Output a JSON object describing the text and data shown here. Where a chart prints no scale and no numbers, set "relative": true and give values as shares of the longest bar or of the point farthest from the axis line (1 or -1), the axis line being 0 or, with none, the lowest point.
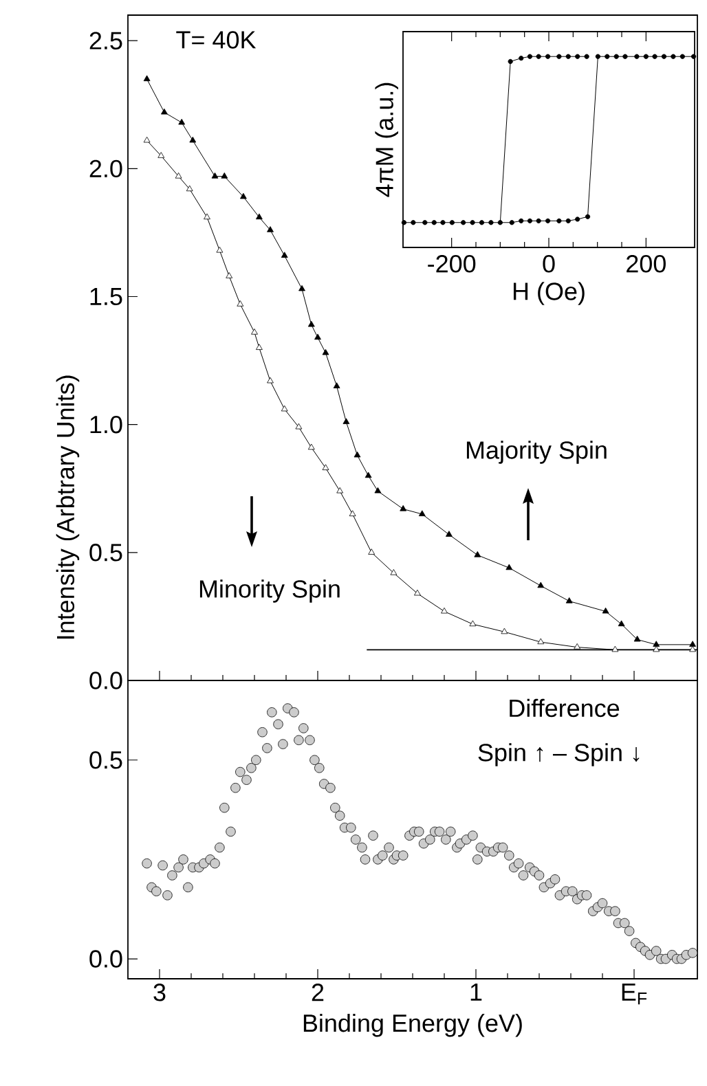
{
  "chart_data": [
    {
      "type": "line",
      "ylabel": "Intensity (Arbtrary Units)",
      "xlim": [
        3.2,
        -0.4
      ],
      "ylim": [
        0,
        2.6
      ],
      "xticks": [
        3,
        2,
        1,
        0
      ],
      "yticks": [
        {
          "value": 0,
          "label": "0.0"
        },
        {
          "value": 0.5,
          "label": "0.5"
        },
        {
          "value": 1,
          "label": "1.0"
        },
        {
          "value": 1.5,
          "label": "1.5"
        },
        {
          "value": 2,
          "label": "2.0"
        },
        {
          "value": 2.5,
          "label": "2.5"
        }
      ],
      "tick_labels": "y",
      "annotations": [
        "T= 40K",
        "Majority Spin",
        "Minority Spin"
      ],
      "series": [
        {
          "color": "#000000",
          "marker": "triangle",
          "x": [
            3.08,
            2.97,
            2.86,
            2.79,
            2.65,
            2.59,
            2.47,
            2.37,
            2.3,
            2.21,
            2.1,
            2.04,
            2.0,
            1.95,
            1.88,
            1.82,
            1.75,
            1.68,
            1.62,
            1.46,
            1.34,
            1.17,
            0.99,
            0.79,
            0.59,
            0.41,
            0.18,
            0.08,
            -0.02,
            -0.14,
            -0.37
          ],
          "values": [
            2.35,
            2.22,
            2.18,
            2.11,
            1.97,
            1.97,
            1.89,
            1.81,
            1.76,
            1.66,
            1.53,
            1.39,
            1.34,
            1.28,
            1.15,
            1.01,
            0.88,
            0.8,
            0.74,
            0.67,
            0.65,
            0.57,
            0.49,
            0.44,
            0.37,
            0.31,
            0.27,
            0.22,
            0.16,
            0.14,
            0.14
          ]
        },
        {
          "color": "#ffffff",
          "marker": "triangle",
          "x": [
            3.08,
            2.99,
            2.88,
            2.81,
            2.7,
            2.62,
            2.56,
            2.49,
            2.4,
            2.37,
            2.3,
            2.21,
            2.12,
            2.04,
            1.95,
            1.86,
            1.78,
            1.66,
            1.52,
            1.37,
            1.2,
            1.02,
            0.82,
            0.59,
            0.36,
            0.12,
            -0.14,
            -0.37
          ],
          "values": [
            2.11,
            2.05,
            1.97,
            1.92,
            1.81,
            1.68,
            1.58,
            1.47,
            1.36,
            1.3,
            1.17,
            1.06,
            0.99,
            0.91,
            0.83,
            0.74,
            0.65,
            0.5,
            0.42,
            0.34,
            0.27,
            0.22,
            0.19,
            0.15,
            0.13,
            0.12,
            0.12,
            0.12
          ]
        },
        {
          "color": "#000000",
          "marker": "none",
          "x": [
            1.69,
            -0.4
          ],
          "values": [
            0.12,
            0.12
          ]
        }
      ]
    },
    {
      "type": "line",
      "relative": true,
      "xlabel": "H (Oe)",
      "ylabel": "4πM (a.u.)",
      "xlim": [
        -300,
        300
      ],
      "xticks": [
        -200,
        0,
        200
      ],
      "marker": "circle",
      "series": [
        {
          "color": "#000000",
          "x": [
            -298,
            -279,
            -255,
            -236,
            -218,
            -199,
            -176,
            -157,
            -138,
            -119,
            -76,
            -57,
            -39,
            -21,
            -2,
            21,
            40,
            59,
            80,
            101,
            120,
            139,
            157,
            181,
            200,
            218,
            237,
            256,
            275,
            298
          ],
          "values": [
            0.0,
            0.0,
            0.0,
            0.0,
            0.0,
            0.0,
            0.0,
            0.0,
            0.0,
            0.0,
            0.0,
            0.01,
            0.01,
            0.01,
            0.01,
            0.01,
            0.01,
            0.02,
            0.035,
            1.0,
            1.0,
            1.0,
            1.0,
            1.0,
            1.0,
            1.0,
            1.0,
            1.0,
            1.0,
            1.0
          ]
        },
        {
          "color": "#000000",
          "x": [
            -100,
            -79,
            -57,
            -39,
            -21,
            -2,
            21,
            40,
            59,
            78
          ],
          "values": [
            0.0,
            0.97,
            0.99,
            1.0,
            1.0,
            1.0,
            1.0,
            1.0,
            1.0,
            1.0
          ]
        }
      ]
    },
    {
      "type": "scatter",
      "xlabel": "Binding Energy (eV)",
      "xlim": [
        3.2,
        -0.4
      ],
      "ylim": [
        -0.05,
        0.7
      ],
      "xticks": [
        3,
        2,
        1,
        {
          "value": 0,
          "label": "E$_{F}$"
        }
      ],
      "yticks": [
        {
          "value": 0,
          "label": "0.0"
        },
        {
          "value": 0.5,
          "label": "0.5"
        }
      ],
      "marker": "circle",
      "annotations": [
        "Difference",
        "Spin ↑ – Spin ↓"
      ],
      "series": [
        {
          "color": "#cccccc",
          "x": [
            3.08,
            3.05,
            3.02,
            2.98,
            2.95,
            2.92,
            2.88,
            2.85,
            2.82,
            2.79,
            2.75,
            2.72,
            2.68,
            2.65,
            2.62,
            2.59,
            2.55,
            2.52,
            2.49,
            2.45,
            2.42,
            2.39,
            2.35,
            2.32,
            2.29,
            2.25,
            2.22,
            2.19,
            2.15,
            2.12,
            2.09,
            2.05,
            2.02,
            1.99,
            1.96,
            1.92,
            1.89,
            1.86,
            1.83,
            1.79,
            1.76,
            1.72,
            1.7,
            1.65,
            1.62,
            1.59,
            1.55,
            1.52,
            1.5,
            1.46,
            1.42,
            1.39,
            1.36,
            1.33,
            1.29,
            1.26,
            1.23,
            1.19,
            1.16,
            1.12,
            1.1,
            1.06,
            1.02,
            0.99,
            0.97,
            0.93,
            0.89,
            0.86,
            0.83,
            0.79,
            0.76,
            0.73,
            0.7,
            0.66,
            0.63,
            0.6,
            0.57,
            0.53,
            0.5,
            0.47,
            0.43,
            0.39,
            0.36,
            0.33,
            0.3,
            0.26,
            0.23,
            0.2,
            0.16,
            0.12,
            0.1,
            0.06,
            0.03,
            -0.01,
            -0.04,
            -0.07,
            -0.1,
            -0.14,
            -0.17,
            -0.2,
            -0.24,
            -0.27,
            -0.3,
            -0.33,
            -0.37
          ],
          "values": [
            0.24,
            0.18,
            0.17,
            0.235,
            0.16,
            0.21,
            0.23,
            0.25,
            0.18,
            0.23,
            0.23,
            0.24,
            0.25,
            0.24,
            0.28,
            0.38,
            0.32,
            0.43,
            0.47,
            0.45,
            0.48,
            0.5,
            0.57,
            0.53,
            0.62,
            0.59,
            0.54,
            0.63,
            0.62,
            0.55,
            0.58,
            0.55,
            0.5,
            0.48,
            0.44,
            0.43,
            0.38,
            0.36,
            0.33,
            0.33,
            0.3,
            0.28,
            0.25,
            0.31,
            0.25,
            0.26,
            0.28,
            0.25,
            0.26,
            0.26,
            0.31,
            0.32,
            0.32,
            0.29,
            0.3,
            0.32,
            0.32,
            0.3,
            0.32,
            0.28,
            0.29,
            0.3,
            0.31,
            0.25,
            0.28,
            0.27,
            0.27,
            0.28,
            0.28,
            0.26,
            0.23,
            0.24,
            0.21,
            0.23,
            0.22,
            0.21,
            0.18,
            0.19,
            0.2,
            0.16,
            0.17,
            0.17,
            0.15,
            0.16,
            0.16,
            0.12,
            0.13,
            0.14,
            0.12,
            0.12,
            0.09,
            0.09,
            0.07,
            0.04,
            0.03,
            0.02,
            0.01,
            0.02,
            0.0,
            0.0,
            0.01,
            0.0,
            0.0,
            0.01,
            0.015
          ]
        }
      ]
    }
  ]
}
